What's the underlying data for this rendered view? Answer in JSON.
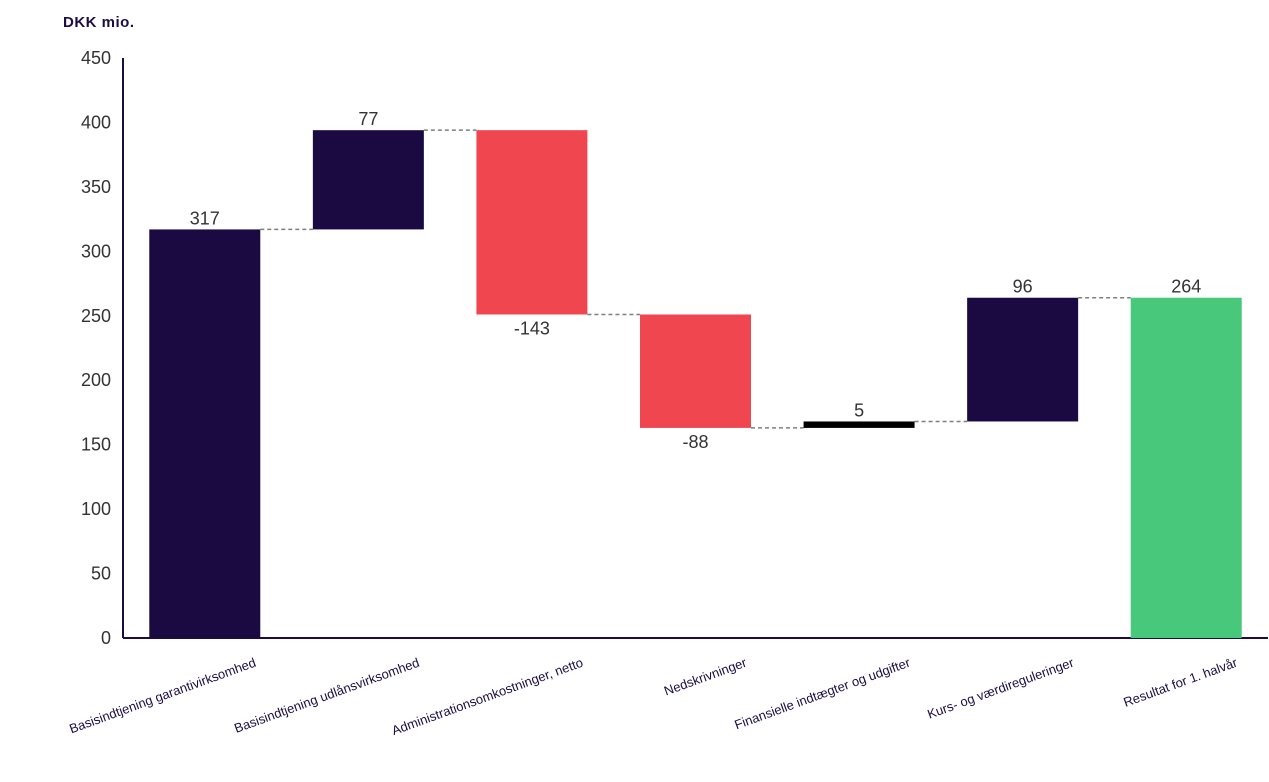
{
  "chart_data": {
    "type": "bar",
    "subtype": "waterfall",
    "unit_label": "DKK mio.",
    "categories": [
      "Basisindtjening garantivirksomhed",
      "Basisindtjening udlånsvirksomhed",
      "Administrationsomkostninger, netto",
      "Nedskrivninger",
      "Finansielle indtægter og udgifter",
      "Kurs- og værdireguleringer",
      "Resultat for 1. halvår"
    ],
    "bars": [
      {
        "category": "Basisindtjening garantivirksomhed",
        "label": "317",
        "start": 0,
        "end": 317,
        "color": "#1b0a42"
      },
      {
        "category": "Basisindtjening udlånsvirksomhed",
        "label": "77",
        "start": 317,
        "end": 394,
        "color": "#1b0a42"
      },
      {
        "category": "Administrationsomkostninger, netto",
        "label": "-143",
        "start": 394,
        "end": 251,
        "color": "#ef4650"
      },
      {
        "category": "Nedskrivninger",
        "label": "-88",
        "start": 251,
        "end": 163,
        "color": "#ef4650"
      },
      {
        "category": "Finansielle indtægter og udgifter",
        "label": "5",
        "start": 163,
        "end": 168,
        "color": "#000000"
      },
      {
        "category": "Kurs- og værdireguleringer",
        "label": "96",
        "start": 168,
        "end": 264,
        "color": "#1b0a42"
      },
      {
        "category": "Resultat for 1. halvår",
        "label": "264",
        "start": 0,
        "end": 264,
        "color": "#47c87a"
      }
    ],
    "ylim": [
      0,
      450
    ],
    "yticks": [
      "0",
      "50",
      "100",
      "150",
      "200",
      "250",
      "300",
      "350",
      "400",
      "450"
    ],
    "grid": false,
    "connectors": "dashed"
  }
}
